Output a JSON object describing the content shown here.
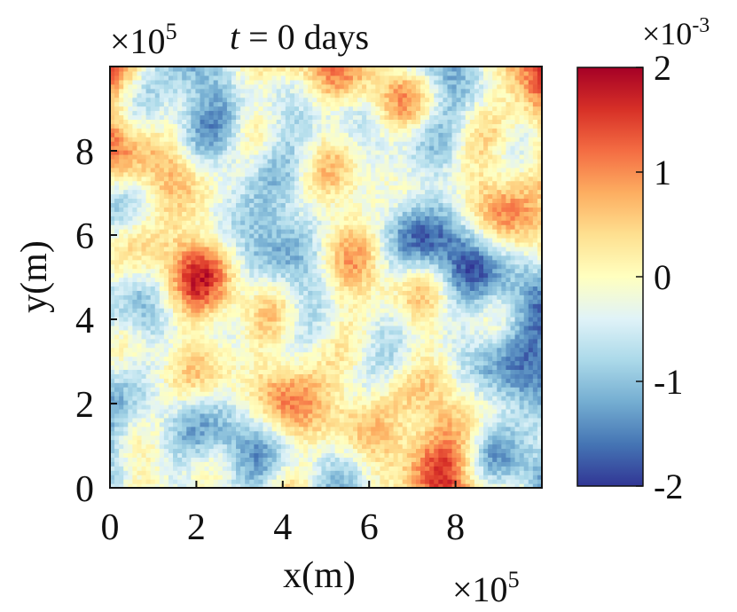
{
  "chart_data": {
    "type": "heatmap",
    "title": {
      "var": "t",
      "rest": " = 0 days"
    },
    "xlabel": "x(m)",
    "ylabel": "y(m)",
    "x_ticks": [
      "0",
      "2",
      "4",
      "6",
      "8"
    ],
    "y_ticks": [
      "0",
      "2",
      "4",
      "6",
      "8"
    ],
    "x_tick_values": [
      0,
      2,
      4,
      6,
      8
    ],
    "y_tick_values": [
      0,
      2,
      4,
      6,
      8
    ],
    "xlim": [
      0,
      10
    ],
    "ylim": [
      0,
      10
    ],
    "x_multiplier": {
      "base": "×10",
      "exp": "5"
    },
    "y_multiplier": {
      "base": "×10",
      "exp": "5"
    },
    "colorbar": {
      "multiplier": {
        "base": "×10",
        "exp": "-3"
      },
      "ticks": [
        "2",
        "1",
        "0",
        "-1",
        "-2"
      ],
      "tick_values": [
        2,
        1,
        0,
        -1,
        -2
      ],
      "range": [
        -2,
        2
      ],
      "colormap": [
        "#313695",
        "#4575b4",
        "#74add1",
        "#abd9e9",
        "#e0f3f8",
        "#ffffbf",
        "#fee090",
        "#fdae61",
        "#f46d43",
        "#d73027",
        "#a50026"
      ]
    },
    "field_description": "random field, values within [-2e-3, 2e-3]",
    "grid": false
  }
}
